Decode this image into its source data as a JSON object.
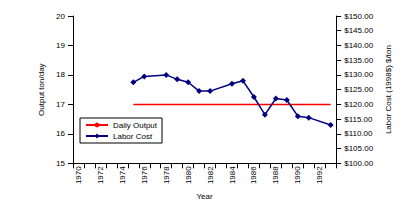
{
  "chart_data": {
    "type": "line",
    "x_label": "Year",
    "y_label": "Output ton/day",
    "y2_label": "Labor Cost (1998$) $/ton",
    "categories": [
      "1970",
      null,
      "1972",
      null,
      "1974",
      null,
      "1976",
      null,
      "1978",
      null,
      "1980",
      null,
      "1982",
      null,
      "1984",
      null,
      "1986",
      null,
      "1988",
      null,
      "1990",
      null,
      "1992",
      null
    ],
    "series": [
      {
        "name": "Daily Output",
        "color": "#ff0000",
        "marker": "none",
        "line_style": "solid",
        "values": [
          null,
          null,
          null,
          null,
          null,
          17,
          17,
          17,
          17,
          17,
          17,
          17,
          17,
          17,
          17,
          17,
          17,
          17,
          17,
          17,
          17,
          17,
          17,
          17
        ]
      },
      {
        "name": "Labor Cost",
        "color": "#000080",
        "marker": "diamond",
        "line_style": "solid",
        "axis": "y2",
        "values": [
          null,
          null,
          null,
          null,
          null,
          127.5,
          129.5,
          null,
          130,
          128.5,
          127.5,
          124.5,
          124.5,
          null,
          127,
          128,
          122.5,
          116.5,
          122,
          121.5,
          116,
          115.5,
          null,
          113
        ]
      }
    ],
    "ylim": [
      15,
      20
    ],
    "yticks": [
      15,
      16,
      17,
      18,
      19,
      20
    ],
    "y2lim": [
      100,
      150
    ],
    "y2ticks": [
      {
        "value": 100,
        "label": "$100.00"
      },
      {
        "value": 105,
        "label": "$105.00"
      },
      {
        "value": 110,
        "label": "$110.00"
      },
      {
        "value": 115,
        "label": "$115.00"
      },
      {
        "value": 120,
        "label": "$120.00"
      },
      {
        "value": 125,
        "label": "$125.00"
      },
      {
        "value": 130,
        "label": "$130.00"
      },
      {
        "value": 135,
        "label": "$135.00"
      },
      {
        "value": 140,
        "label": "$140.00"
      },
      {
        "value": 145,
        "label": "$145.00"
      },
      {
        "value": 150,
        "label": "$150.00"
      }
    ],
    "grid": false,
    "legend": "lower left"
  }
}
